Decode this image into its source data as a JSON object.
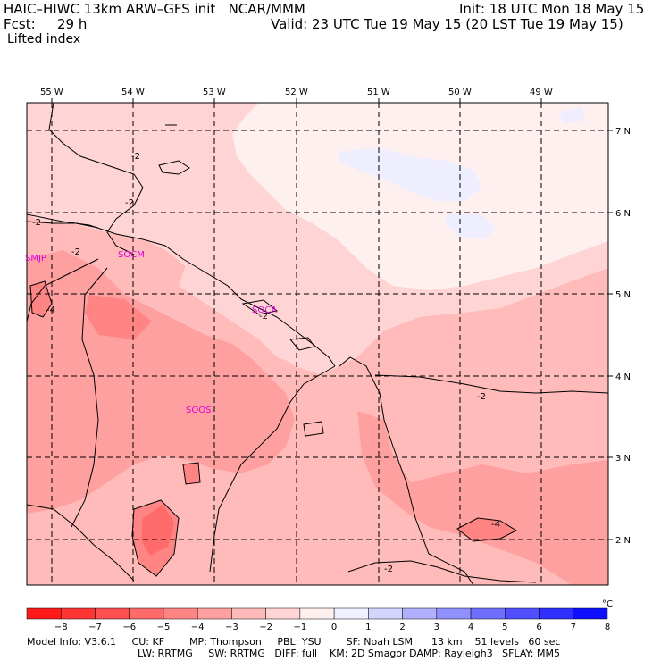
{
  "header": {
    "title": "HAIC–HIWC 13km ARW–GFS init   NCAR/MMM",
    "init": "Init: 18 UTC Mon 18 May 15",
    "fcst_label": "Fcst:",
    "fcst_value": "29 h",
    "valid": "Valid: 23 UTC Tue 19 May 15 (20 LST Tue 19 May 15)",
    "field": "Lifted index"
  },
  "longitudes": [
    "55 W",
    "54 W",
    "53 W",
    "52 W",
    "51 W",
    "50 W",
    "49 W"
  ],
  "latitudes": [
    "7 N",
    "6 N",
    "5 N",
    "4 N",
    "3 N",
    "2 N"
  ],
  "stations": [
    "SMJP",
    "SOCM",
    "SOCA",
    "SOOS"
  ],
  "contour_labels": [
    "-2",
    "-2",
    "-2",
    "-2",
    "-4",
    "-2",
    "-2",
    "-4",
    "-2"
  ],
  "colorbar": {
    "labels": [
      "−8",
      "−7",
      "−6",
      "−5",
      "−4",
      "−3",
      "−2",
      "−1",
      "0",
      "1",
      "2",
      "3",
      "4",
      "5",
      "6",
      "7",
      "8"
    ],
    "unit": "°C",
    "colors": [
      "#ff1a1a",
      "#ff3535",
      "#ff4f4f",
      "#ff6a6a",
      "#ff8585",
      "#ffa0a0",
      "#ffbaba",
      "#ffd4d4",
      "#fff0f0",
      "#f0f0ff",
      "#d4d4ff",
      "#b0b0ff",
      "#9090ff",
      "#6f6fff",
      "#4f4fff",
      "#2f2fff",
      "#0f0fff"
    ]
  },
  "model_info": {
    "line1": "Model Info: V3.6.1     CU: KF        MP: Thompson     PBL: YSU        SF: Noah LSM      13 km    51 levels   60 sec",
    "line2": "LW: RRTMG     SW: RRTMG   DIFF: full    KM: 2D Smagor DAMP: Rayleigh3   SFLAY: MM5"
  }
}
